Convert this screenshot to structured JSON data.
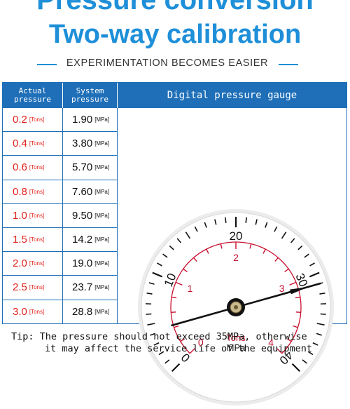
{
  "header": {
    "title_line1": "Pressure conversion",
    "title_line2": "Two-way calibration",
    "subtitle": "EXPERIMENTATION BECOMES EASIER"
  },
  "table": {
    "col_actual": "Actual pressure",
    "col_system": "System pressure",
    "col_gauge": "Digital pressure gauge",
    "rows": [
      {
        "actual": "0.2",
        "actual_unit": "[Tons]",
        "system": "1.90",
        "system_unit": "[MPa]"
      },
      {
        "actual": "0.4",
        "actual_unit": "[Tons]",
        "system": "3.80",
        "system_unit": "[MPa]"
      },
      {
        "actual": "0.6",
        "actual_unit": "[Tons]",
        "system": "5.70",
        "system_unit": "[MPa]"
      },
      {
        "actual": "0.8",
        "actual_unit": "[Tons]",
        "system": "7.60",
        "system_unit": "[MPa]"
      },
      {
        "actual": "1.0",
        "actual_unit": "[Tons]",
        "system": "9.50",
        "system_unit": "[MPa]"
      },
      {
        "actual": "1.5",
        "actual_unit": "[Tons]",
        "system": "14.2",
        "system_unit": "[MPa]"
      },
      {
        "actual": "2.0",
        "actual_unit": "[Tons]",
        "system": "19.0",
        "system_unit": "[MPa]"
      },
      {
        "actual": "2.5",
        "actual_unit": "[Tons]",
        "system": "23.7",
        "system_unit": "[MPa]"
      },
      {
        "actual": "3.0",
        "actual_unit": "[Tons]",
        "system": "28.8",
        "system_unit": "[MPa]"
      }
    ]
  },
  "gauge": {
    "mpa_labels": [
      "0",
      "10",
      "20",
      "30",
      "40"
    ],
    "tons_labels": [
      "0",
      "1",
      "2",
      "3",
      "4"
    ],
    "unit_tons": "Tons",
    "unit_mpa": "MPa",
    "mpa_max": 40,
    "needle_mpa": 31,
    "accent_red": "#c8102e"
  },
  "tip": {
    "line1": "Tip: The pressure should not exceed 35MPa, otherwise",
    "line2": "it may affect the service life of the equipment"
  },
  "colors": {
    "brand_blue": "#1e8fd8",
    "table_blue": "#1e6fb8",
    "value_red": "#e0221a"
  }
}
